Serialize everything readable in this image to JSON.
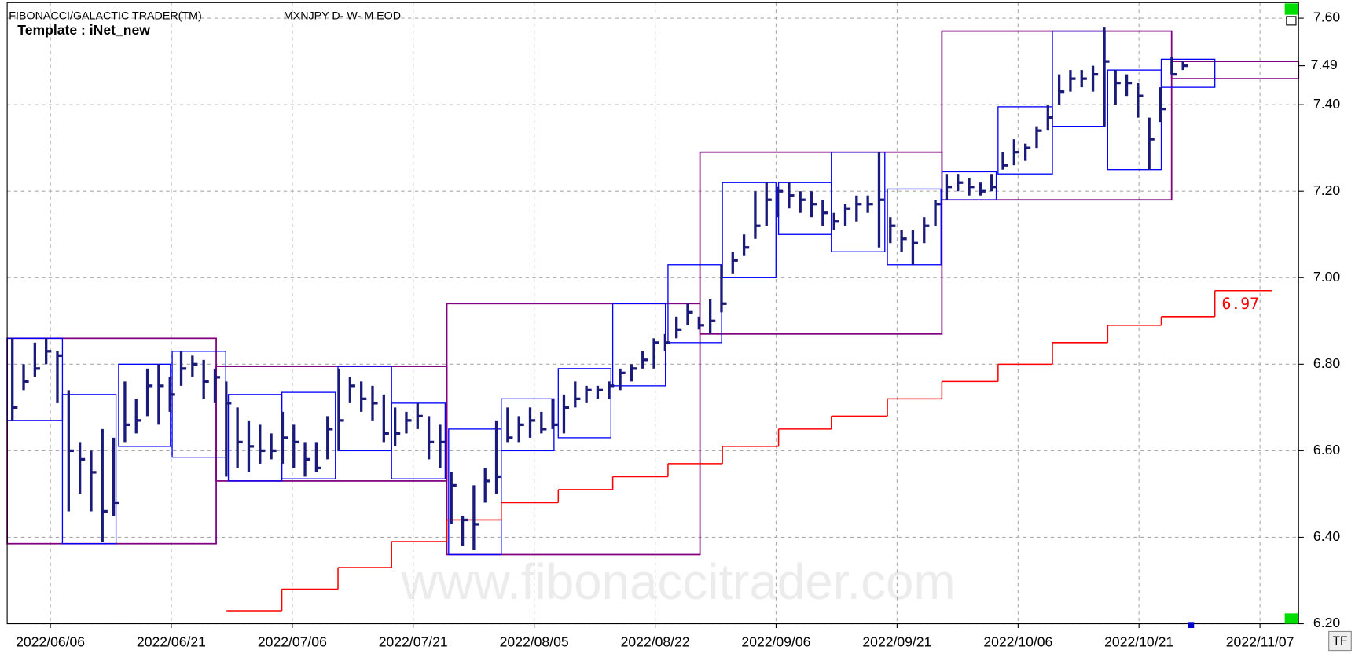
{
  "header": {
    "title": "FIBONACCI/GALACTIC TRADER(TM)",
    "symbol": "MXNJPY D- W- M EOD",
    "template": "Template : iNet_new"
  },
  "watermark": "www.fibonaccitrader.com",
  "button": "TF",
  "chart_data": {
    "type": "ohlc",
    "color": "#1a1a7a",
    "grid": true,
    "ylim": [
      6.2,
      7.6
    ],
    "yticks": [
      {
        "value": 6.2,
        "label": "6.20"
      },
      {
        "value": 6.4,
        "label": "6.40"
      },
      {
        "value": 6.6,
        "label": "6.60"
      },
      {
        "value": 6.8,
        "label": "6.80"
      },
      {
        "value": 7.0,
        "label": "7.00"
      },
      {
        "value": 7.2,
        "label": "7.20"
      },
      {
        "value": 7.4,
        "label": "7.40"
      },
      {
        "value": 7.6,
        "label": "7.60"
      }
    ],
    "xlim": [
      -0.46,
      114.27
    ],
    "xticks": [
      {
        "value": 3.38,
        "label": "2022/06/06"
      },
      {
        "value": 14.12,
        "label": "2022/06/21"
      },
      {
        "value": 24.87,
        "label": "2022/07/06"
      },
      {
        "value": 35.61,
        "label": "2022/07/21"
      },
      {
        "value": 46.36,
        "label": "2022/08/05"
      },
      {
        "value": 57.11,
        "label": "2022/08/22"
      },
      {
        "value": 67.85,
        "label": "2022/09/06"
      },
      {
        "value": 78.6,
        "label": "2022/09/21"
      },
      {
        "value": 89.35,
        "label": "2022/10/06"
      },
      {
        "value": 100.09,
        "label": "2022/10/21"
      },
      {
        "value": 110.84,
        "label": "2022/11/07"
      }
    ],
    "x": [
      0,
      1,
      2,
      3,
      4,
      5,
      6,
      7,
      8,
      9,
      10,
      11,
      12,
      13,
      14,
      15,
      16,
      17,
      18,
      19,
      20,
      21,
      22,
      23,
      24,
      25,
      26,
      27,
      28,
      29,
      30,
      31,
      32,
      33,
      34,
      35,
      36,
      37,
      38,
      39,
      40,
      41,
      42,
      43,
      44,
      45,
      46,
      47,
      48,
      49,
      50,
      51,
      52,
      53,
      54,
      55,
      56,
      57,
      58,
      59,
      60,
      61,
      62,
      63,
      64,
      65,
      66,
      67,
      68,
      69,
      70,
      71,
      72,
      73,
      74,
      75,
      76,
      77,
      78,
      79,
      80,
      81,
      82,
      83,
      84,
      85,
      86,
      87,
      88,
      89,
      90,
      91,
      92,
      93,
      94,
      95,
      96,
      97,
      98,
      99,
      100,
      101,
      102,
      103,
      104
    ],
    "high": [
      6.86,
      6.8,
      6.85,
      6.86,
      6.83,
      6.74,
      6.62,
      6.6,
      6.65,
      6.63,
      6.76,
      6.72,
      6.79,
      6.8,
      6.77,
      6.83,
      6.82,
      6.81,
      6.79,
      6.76,
      6.7,
      6.67,
      6.66,
      6.64,
      6.69,
      6.66,
      6.62,
      6.62,
      6.68,
      6.79,
      6.77,
      6.76,
      6.75,
      6.73,
      6.7,
      6.69,
      6.71,
      6.68,
      6.66,
      6.55,
      6.45,
      6.52,
      6.56,
      6.67,
      6.7,
      6.68,
      6.7,
      6.69,
      6.72,
      6.73,
      6.76,
      6.75,
      6.75,
      6.76,
      6.79,
      6.8,
      6.83,
      6.86,
      6.87,
      6.91,
      6.94,
      6.91,
      6.95,
      7.03,
      7.06,
      7.1,
      7.2,
      7.22,
      7.21,
      7.22,
      7.2,
      7.2,
      7.18,
      7.15,
      7.17,
      7.19,
      7.19,
      7.29,
      7.14,
      7.11,
      7.11,
      7.14,
      7.18,
      7.24,
      7.24,
      7.23,
      7.22,
      7.24,
      7.29,
      7.32,
      7.31,
      7.35,
      7.4,
      7.47,
      7.48,
      7.48,
      7.49,
      7.58,
      7.48,
      7.47,
      7.45,
      7.37,
      7.44,
      7.51,
      7.5
    ],
    "low": [
      6.67,
      6.74,
      6.77,
      6.8,
      6.71,
      6.46,
      6.5,
      6.46,
      6.39,
      6.45,
      6.62,
      6.64,
      6.68,
      6.66,
      6.69,
      6.75,
      6.77,
      6.72,
      6.71,
      6.54,
      6.56,
      6.55,
      6.57,
      6.58,
      6.57,
      6.56,
      6.54,
      6.55,
      6.58,
      6.6,
      6.71,
      6.69,
      6.67,
      6.62,
      6.61,
      6.64,
      6.65,
      6.58,
      6.56,
      6.43,
      6.38,
      6.37,
      6.48,
      6.5,
      6.62,
      6.62,
      6.63,
      6.64,
      6.65,
      6.64,
      6.7,
      6.71,
      6.72,
      6.72,
      6.74,
      6.76,
      6.79,
      6.79,
      6.83,
      6.86,
      6.89,
      6.88,
      6.87,
      6.92,
      7.01,
      7.05,
      7.09,
      7.12,
      7.14,
      7.16,
      7.15,
      7.14,
      7.12,
      7.11,
      7.12,
      7.13,
      7.15,
      7.07,
      7.08,
      7.06,
      7.03,
      7.08,
      7.12,
      7.18,
      7.2,
      7.19,
      7.19,
      7.2,
      7.25,
      7.26,
      7.27,
      7.3,
      7.34,
      7.4,
      7.43,
      7.44,
      7.43,
      7.35,
      7.4,
      7.42,
      7.37,
      7.25,
      7.36,
      7.47,
      7.48
    ],
    "close": [
      6.7,
      6.76,
      6.79,
      6.83,
      6.82,
      6.6,
      6.58,
      6.55,
      6.46,
      6.48,
      6.66,
      6.67,
      6.75,
      6.75,
      6.73,
      6.79,
      6.8,
      6.76,
      6.77,
      6.71,
      6.62,
      6.61,
      6.6,
      6.6,
      6.63,
      6.62,
      6.58,
      6.56,
      6.65,
      6.67,
      6.75,
      6.72,
      6.71,
      6.64,
      6.64,
      6.67,
      6.68,
      6.62,
      6.62,
      6.52,
      6.44,
      6.43,
      6.53,
      6.54,
      6.63,
      6.66,
      6.67,
      6.65,
      6.66,
      6.7,
      6.72,
      6.74,
      6.74,
      6.75,
      6.78,
      6.79,
      6.81,
      6.85,
      6.85,
      6.88,
      6.92,
      6.89,
      6.9,
      6.94,
      7.04,
      7.07,
      7.12,
      7.18,
      7.2,
      7.19,
      7.18,
      7.17,
      7.15,
      7.13,
      7.16,
      7.17,
      7.17,
      7.18,
      7.12,
      7.09,
      7.08,
      7.12,
      7.17,
      7.21,
      7.22,
      7.21,
      7.2,
      7.21,
      7.26,
      7.29,
      7.3,
      7.34,
      7.37,
      7.43,
      7.46,
      7.46,
      7.47,
      7.5,
      7.45,
      7.45,
      7.42,
      7.32,
      7.39,
      7.47,
      7.49
    ],
    "weekly_color": "#0000ff",
    "weekly_boxes": [
      {
        "x": [
          -0.46,
          4.45
        ],
        "high": 6.86,
        "low": 6.67
      },
      {
        "x": [
          4.45,
          9.21
        ],
        "high": 6.73,
        "low": 6.385
      },
      {
        "x": [
          9.44,
          14.04
        ],
        "high": 6.8,
        "low": 6.61
      },
      {
        "x": [
          14.2,
          18.96
        ],
        "high": 6.83,
        "low": 6.585
      },
      {
        "x": [
          19.19,
          23.94
        ],
        "high": 6.73,
        "low": 6.53
      },
      {
        "x": [
          23.94,
          28.7
        ],
        "high": 6.735,
        "low": 6.535
      },
      {
        "x": [
          28.93,
          33.69
        ],
        "high": 6.795,
        "low": 6.6
      },
      {
        "x": [
          33.69,
          38.45
        ],
        "high": 6.71,
        "low": 6.535
      },
      {
        "x": [
          38.76,
          43.44
        ],
        "high": 6.65,
        "low": 6.36
      },
      {
        "x": [
          43.44,
          48.12
        ],
        "high": 6.72,
        "low": 6.6
      },
      {
        "x": [
          48.5,
          53.18
        ],
        "high": 6.79,
        "low": 6.63
      },
      {
        "x": [
          53.34,
          58.02
        ],
        "high": 6.94,
        "low": 6.75
      },
      {
        "x": [
          58.25,
          63.01
        ],
        "high": 7.03,
        "low": 6.85
      },
      {
        "x": [
          63.08,
          67.84
        ],
        "high": 7.22,
        "low": 7.0
      },
      {
        "x": [
          68.07,
          72.76
        ],
        "high": 7.22,
        "low": 7.1
      },
      {
        "x": [
          72.76,
          77.51
        ],
        "high": 7.29,
        "low": 7.06
      },
      {
        "x": [
          77.74,
          82.5
        ],
        "high": 7.205,
        "low": 7.03
      },
      {
        "x": [
          82.58,
          87.41
        ],
        "high": 7.245,
        "low": 7.18
      },
      {
        "x": [
          87.57,
          92.4
        ],
        "high": 7.395,
        "low": 7.24
      },
      {
        "x": [
          92.4,
          97.08
        ],
        "high": 7.57,
        "low": 7.35
      },
      {
        "x": [
          97.31,
          102.07
        ],
        "high": 7.48,
        "low": 7.25
      },
      {
        "x": [
          102.07,
          106.83
        ],
        "high": 7.505,
        "low": 7.44
      }
    ],
    "monthly_color": "#800080",
    "monthly_boxes": [
      {
        "x": [
          -0.46,
          18.11
        ],
        "high": 6.86,
        "low": 6.385
      },
      {
        "x": [
          18.11,
          38.6
        ],
        "high": 6.795,
        "low": 6.53
      },
      {
        "x": [
          38.6,
          61.09
        ],
        "high": 6.94,
        "low": 6.36
      },
      {
        "x": [
          61.09,
          82.58
        ],
        "high": 7.29,
        "low": 6.87
      },
      {
        "x": [
          82.58,
          102.99
        ],
        "high": 7.57,
        "low": 7.18
      },
      {
        "x": [
          102.99,
          114.27
        ],
        "high": 7.5,
        "low": 7.46
      }
    ],
    "step_color": "#ff0000",
    "steps": [
      {
        "x": [
          19.03,
          23.94
        ],
        "value": 6.23
      },
      {
        "x": [
          23.94,
          28.93
        ],
        "value": 6.28
      },
      {
        "x": [
          28.93,
          33.69
        ],
        "value": 6.33
      },
      {
        "x": [
          33.69,
          38.6
        ],
        "value": 6.39
      },
      {
        "x": [
          38.6,
          43.44
        ],
        "value": 6.44
      },
      {
        "x": [
          43.44,
          48.5
        ],
        "value": 6.48
      },
      {
        "x": [
          48.5,
          53.34
        ],
        "value": 6.51
      },
      {
        "x": [
          53.34,
          58.25
        ],
        "value": 6.54
      },
      {
        "x": [
          58.25,
          63.08
        ],
        "value": 6.57
      },
      {
        "x": [
          63.08,
          68.07
        ],
        "value": 6.61
      },
      {
        "x": [
          68.07,
          72.76
        ],
        "value": 6.65
      },
      {
        "x": [
          72.76,
          77.74
        ],
        "value": 6.68
      },
      {
        "x": [
          77.74,
          82.58
        ],
        "value": 6.72
      },
      {
        "x": [
          82.58,
          87.57
        ],
        "value": 6.76
      },
      {
        "x": [
          87.57,
          92.4
        ],
        "value": 6.8
      },
      {
        "x": [
          92.4,
          97.31
        ],
        "value": 6.85
      },
      {
        "x": [
          97.31,
          102.07
        ],
        "value": 6.89
      },
      {
        "x": [
          102.07,
          106.83
        ],
        "value": 6.91
      },
      {
        "x": [
          106.83,
          111.9
        ],
        "value": 6.97
      }
    ],
    "last_price": 7.49
  }
}
